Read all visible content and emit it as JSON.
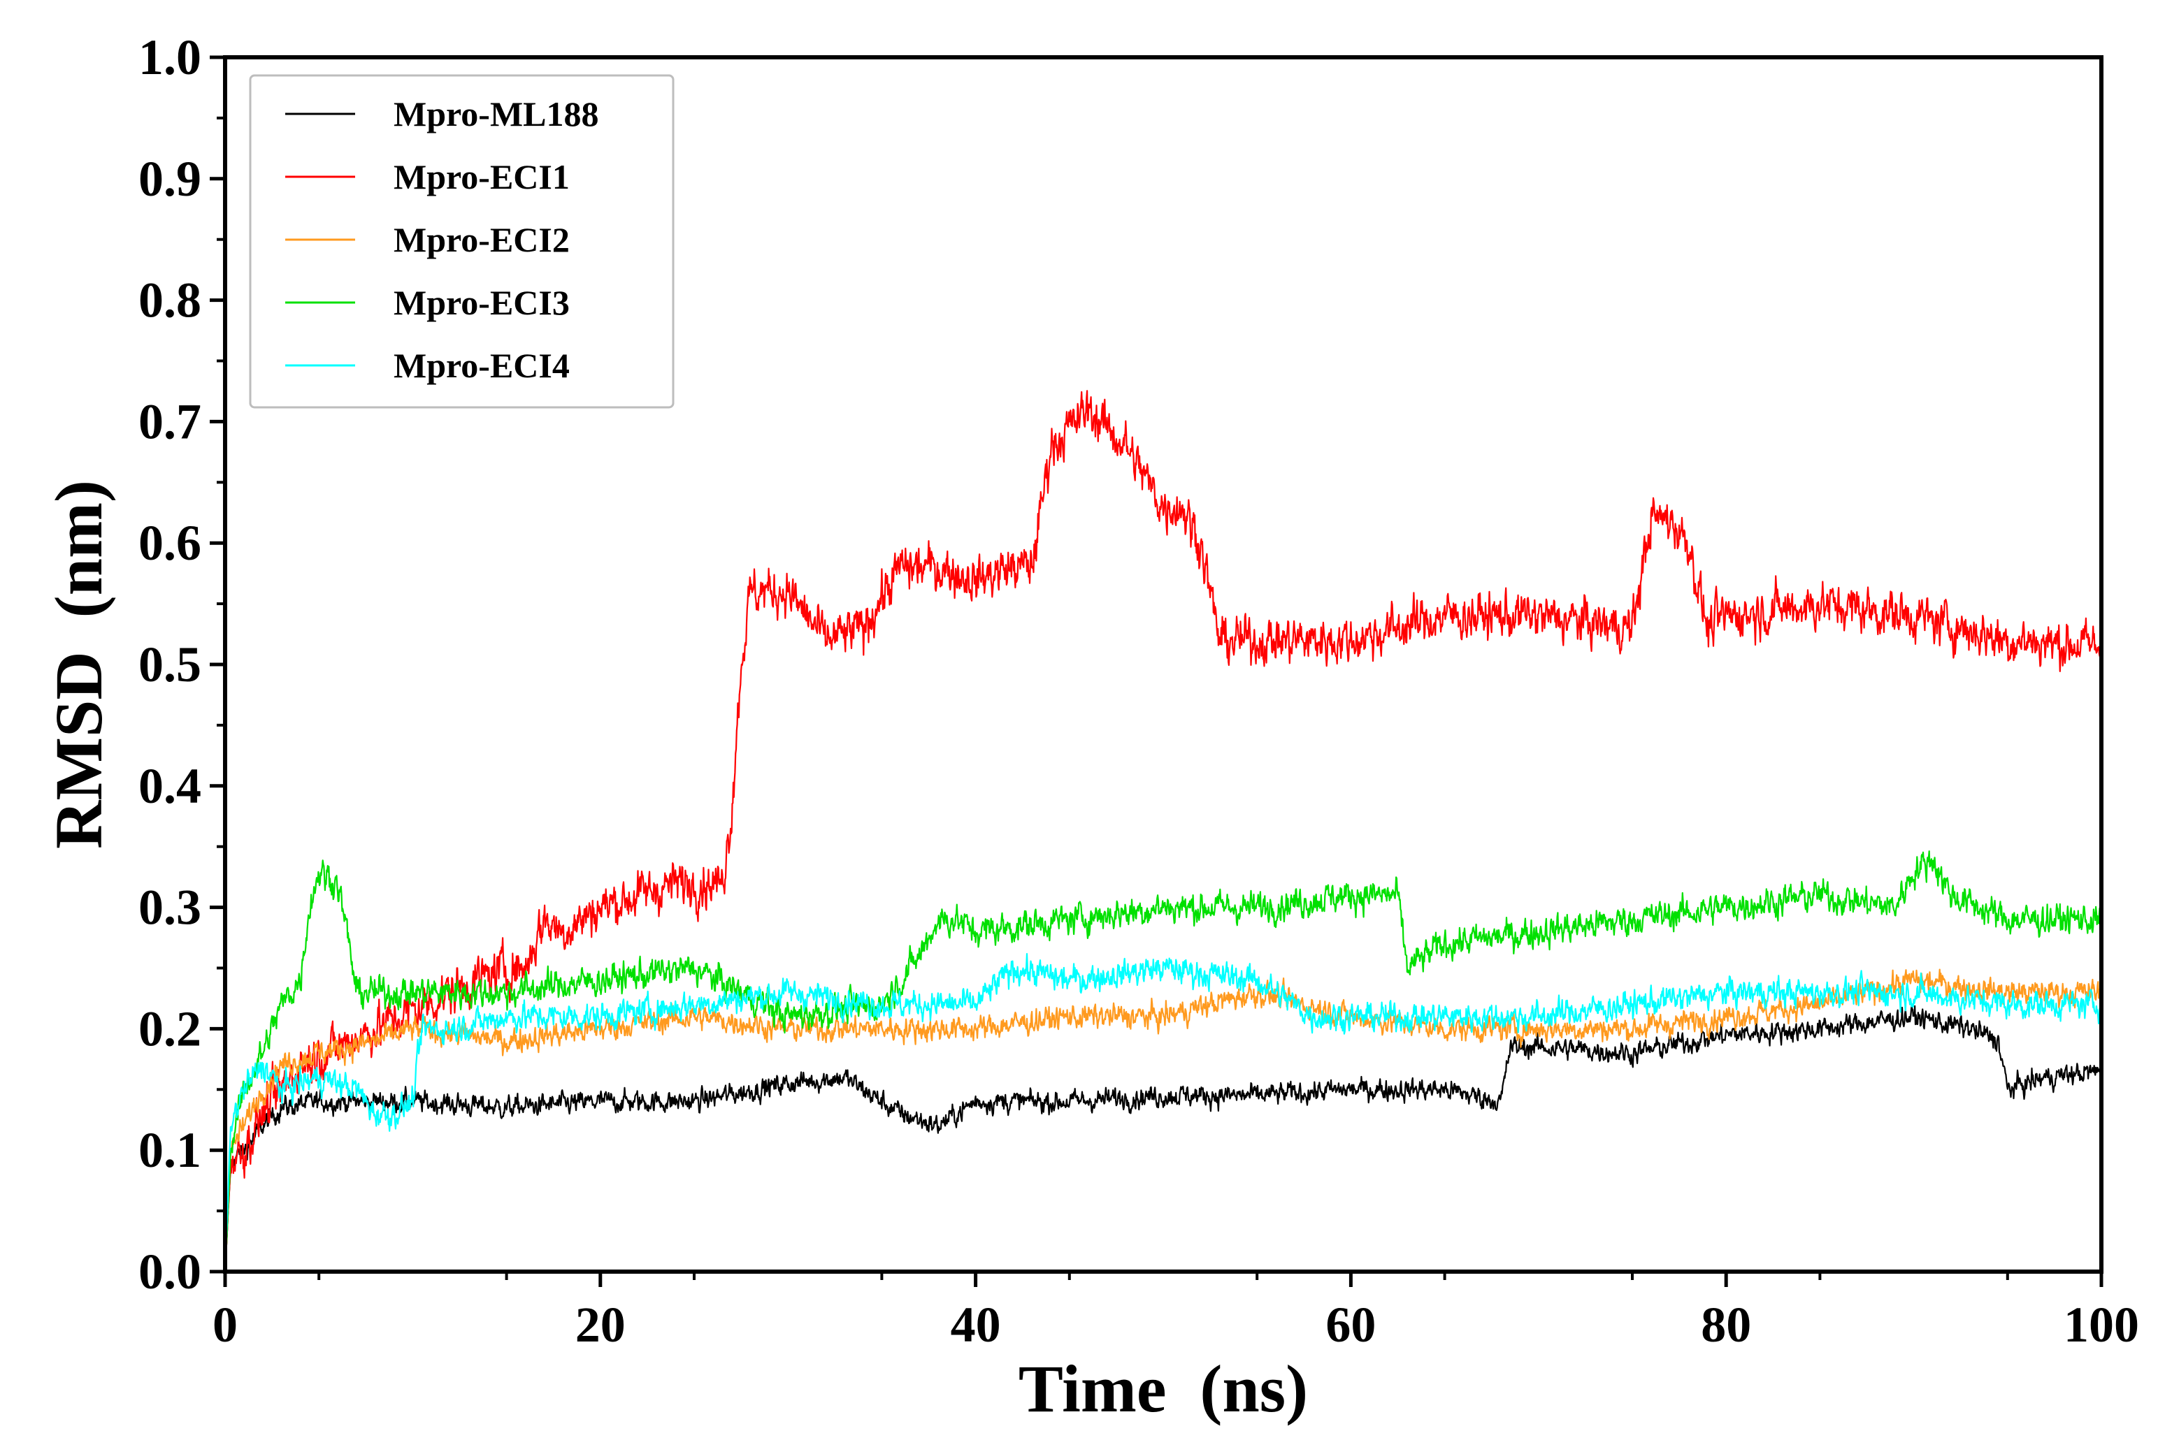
{
  "chart_data": {
    "type": "line",
    "title": "",
    "xlabel": "Time  (ns)",
    "ylabel": "RMSD  (nm)",
    "xlim": [
      0,
      100
    ],
    "ylim": [
      0.0,
      1.0
    ],
    "xticks": [
      0,
      20,
      40,
      60,
      80,
      100
    ],
    "xtick_labels": [
      "0",
      "20",
      "40",
      "60",
      "80",
      "100"
    ],
    "yticks": [
      0.0,
      0.1,
      0.2,
      0.3,
      0.4,
      0.5,
      0.6,
      0.7,
      0.8,
      0.9,
      1.0
    ],
    "ytick_labels": [
      "0.0",
      "0.1",
      "0.2",
      "0.3",
      "0.4",
      "0.5",
      "0.6",
      "0.7",
      "0.8",
      "0.9",
      "1.0"
    ],
    "grid": false,
    "legend_position": "top-left",
    "series": [
      {
        "name": "Mpro-ML188",
        "color": "#000000",
        "noise": 0.014,
        "x": [
          0,
          0.3,
          1,
          2,
          3,
          5,
          8,
          10,
          15,
          20,
          25,
          30,
          33,
          36,
          38,
          40,
          45,
          50,
          55,
          60,
          65,
          68,
          68.5,
          70,
          75,
          80,
          85,
          90,
          93,
          94.5,
          95,
          97,
          100
        ],
        "y": [
          0.0,
          0.09,
          0.1,
          0.12,
          0.135,
          0.14,
          0.14,
          0.14,
          0.135,
          0.14,
          0.14,
          0.155,
          0.16,
          0.13,
          0.12,
          0.14,
          0.14,
          0.145,
          0.145,
          0.15,
          0.15,
          0.14,
          0.185,
          0.185,
          0.18,
          0.195,
          0.2,
          0.21,
          0.2,
          0.19,
          0.15,
          0.16,
          0.165
        ]
      },
      {
        "name": "Mpro-ECI1",
        "color": "#ff0000",
        "noise": 0.03,
        "x": [
          0,
          0.3,
          1,
          2,
          4,
          8,
          12,
          15,
          16,
          17,
          18,
          20,
          24,
          26.5,
          27,
          27.5,
          28,
          30,
          32,
          34,
          36,
          38,
          40,
          42,
          43,
          44,
          46,
          48,
          50,
          51,
          52,
          53,
          55,
          60,
          65,
          70,
          75,
          76,
          77,
          78,
          79,
          80,
          85,
          90,
          95,
          100
        ],
        "y": [
          0.0,
          0.09,
          0.1,
          0.13,
          0.17,
          0.2,
          0.23,
          0.25,
          0.25,
          0.29,
          0.28,
          0.3,
          0.32,
          0.32,
          0.38,
          0.5,
          0.56,
          0.56,
          0.52,
          0.53,
          0.58,
          0.58,
          0.57,
          0.58,
          0.58,
          0.68,
          0.71,
          0.68,
          0.63,
          0.63,
          0.6,
          0.52,
          0.52,
          0.52,
          0.54,
          0.54,
          0.53,
          0.62,
          0.62,
          0.6,
          0.53,
          0.54,
          0.55,
          0.54,
          0.52,
          0.515
        ]
      },
      {
        "name": "Mpro-ECI2",
        "color": "#ff9a1f",
        "noise": 0.016,
        "x": [
          0,
          0.3,
          1,
          2,
          3,
          5,
          8,
          10,
          15,
          20,
          25,
          30,
          35,
          40,
          45,
          50,
          55,
          60,
          65,
          70,
          75,
          80,
          85,
          90,
          95,
          100
        ],
        "y": [
          0.0,
          0.1,
          0.12,
          0.15,
          0.17,
          0.18,
          0.19,
          0.2,
          0.19,
          0.2,
          0.21,
          0.2,
          0.2,
          0.2,
          0.21,
          0.21,
          0.23,
          0.21,
          0.2,
          0.2,
          0.2,
          0.21,
          0.22,
          0.24,
          0.23,
          0.23
        ]
      },
      {
        "name": "Mpro-ECI3",
        "color": "#00e000",
        "noise": 0.02,
        "x": [
          0,
          0.3,
          1,
          2,
          3,
          4,
          4.5,
          5,
          6,
          6.5,
          7,
          10,
          15,
          20,
          25,
          30,
          35,
          37,
          38,
          39,
          40,
          45,
          50,
          55,
          60,
          62.5,
          63,
          65,
          70,
          75,
          80,
          85,
          89,
          90,
          91,
          92,
          95,
          100
        ],
        "y": [
          0.0,
          0.1,
          0.15,
          0.18,
          0.22,
          0.24,
          0.3,
          0.33,
          0.32,
          0.28,
          0.23,
          0.23,
          0.23,
          0.24,
          0.25,
          0.21,
          0.22,
          0.26,
          0.29,
          0.29,
          0.28,
          0.29,
          0.3,
          0.3,
          0.31,
          0.31,
          0.25,
          0.27,
          0.28,
          0.29,
          0.3,
          0.31,
          0.3,
          0.33,
          0.34,
          0.31,
          0.29,
          0.29
        ]
      },
      {
        "name": "Mpro-ECI4",
        "color": "#00ffff",
        "noise": 0.018,
        "x": [
          0,
          0.3,
          1,
          2,
          3,
          5,
          7,
          8,
          9,
          10,
          10.5,
          12,
          15,
          20,
          25,
          30,
          35,
          40,
          42,
          45,
          50,
          55,
          58,
          60,
          65,
          70,
          75,
          80,
          85,
          90,
          95,
          100
        ],
        "y": [
          0.0,
          0.12,
          0.15,
          0.17,
          0.15,
          0.16,
          0.15,
          0.13,
          0.13,
          0.14,
          0.2,
          0.2,
          0.21,
          0.21,
          0.22,
          0.23,
          0.22,
          0.22,
          0.25,
          0.24,
          0.25,
          0.24,
          0.21,
          0.21,
          0.21,
          0.21,
          0.22,
          0.23,
          0.23,
          0.23,
          0.22,
          0.22
        ]
      }
    ]
  }
}
